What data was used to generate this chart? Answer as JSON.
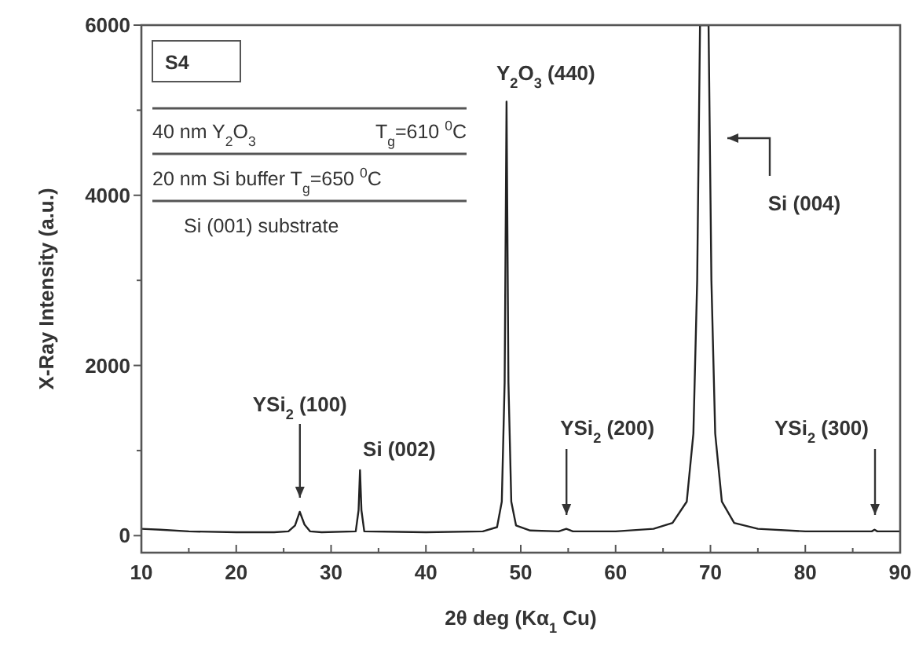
{
  "chart_data": {
    "type": "line",
    "xlabel": "2θ deg (Kα$_{1}$ Cu)",
    "ylabel": "X-Ray Intensity (a.u.)",
    "x": [
      10,
      12,
      15,
      20,
      24,
      25.5,
      26.2,
      26.7,
      27.2,
      27.8,
      29,
      32.6,
      32.9,
      33.05,
      33.2,
      33.5,
      40,
      46,
      47.5,
      48.0,
      48.3,
      48.5,
      48.7,
      49.0,
      49.5,
      51,
      54,
      54.8,
      55.5,
      60,
      64,
      66,
      67.5,
      68.2,
      68.6,
      68.9,
      69.8,
      70.1,
      70.5,
      71.2,
      72.5,
      75,
      80,
      87,
      87.3,
      87.6,
      90
    ],
    "series": [
      {
        "color": "#222222",
        "values": [
          80,
          70,
          50,
          40,
          40,
          50,
          120,
          280,
          130,
          50,
          40,
          50,
          300,
          770,
          300,
          50,
          40,
          50,
          100,
          400,
          1800,
          5100,
          1800,
          400,
          120,
          60,
          50,
          80,
          50,
          50,
          80,
          150,
          400,
          1200,
          3000,
          6000,
          6000,
          3000,
          1200,
          400,
          150,
          80,
          50,
          50,
          70,
          50,
          50
        ]
      }
    ],
    "xlim": [
      10,
      90
    ],
    "xticks": [
      10,
      {
        "value": 15,
        "label": null
      },
      20,
      {
        "value": 25,
        "label": null
      },
      30,
      {
        "value": 35,
        "label": null
      },
      40,
      {
        "value": 45,
        "label": null
      },
      50,
      {
        "value": 55,
        "label": null
      },
      60,
      {
        "value": 65,
        "label": null
      },
      70,
      {
        "value": 75,
        "label": null
      },
      80,
      {
        "value": 85,
        "label": null
      },
      90
    ],
    "ylim": [
      -200,
      6000
    ],
    "yticks": [
      0,
      {
        "value": 1000,
        "label": null
      },
      2000,
      {
        "value": 3000,
        "label": null
      },
      4000,
      {
        "value": 5000,
        "label": null
      },
      6000
    ],
    "grid": false,
    "marker": "none",
    "line_style": "solid",
    "annotations": [
      {
        "text": "Si (002)",
        "x": 33.05,
        "y": 770
      },
      {
        "text": "Y$_{2}$O$_{3}$ (440)",
        "x": 48.5,
        "y": 5100
      },
      "YSi$_{2}$ (100)",
      "YSi$_{2}$ (200)",
      "YSi$_{2}$ (300)",
      "Si (004)",
      "S4",
      "40 nm Y$_{2}$O$_{3}$",
      "T$_{g}$=610 $^{0}$C",
      "20 nm Si buffer T$_{g}$=650 $^{0}$C",
      "Si (001) substrate"
    ]
  }
}
